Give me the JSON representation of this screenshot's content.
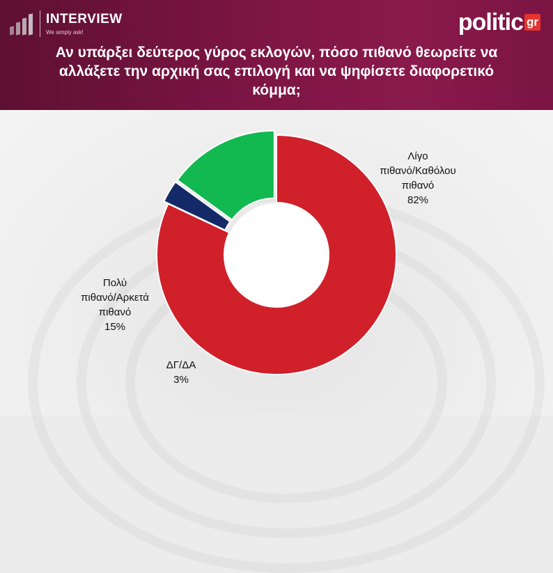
{
  "header": {
    "brand_left": "INTERVIEW",
    "brand_left_tagline": "We simply ask!",
    "brand_right": "politic",
    "brand_right_suffix": "gr",
    "title": "Αν υπάρξει δεύτερος γύρος εκλογών, πόσο πιθανό θεωρείτε να αλλάξετε την αρχική σας επιλογή και να ψηφίσετε διαφορετικό κόμμα;"
  },
  "chart_data": {
    "type": "pie",
    "donut": true,
    "title": "Αν υπάρξει δεύτερος γύρος εκλογών, πόσο πιθανό θεωρείτε να αλλάξετε την αρχική σας επιλογή και να ψηφίσετε διαφορετικό κόμμα;",
    "slices": [
      {
        "label": "Λίγο πιθανό/Καθόλου πιθανό",
        "label_lines": [
          "Λίγο",
          "πιθανό/Καθόλου",
          "πιθανό"
        ],
        "value": 82,
        "value_label": "82%",
        "color": "#d0202a",
        "exploded": false
      },
      {
        "label": "ΔΓ/ΔΑ",
        "label_lines": [
          "ΔΓ/ΔΑ"
        ],
        "value": 3,
        "value_label": "3%",
        "color": "#142a68",
        "exploded": true
      },
      {
        "label": "Πολύ πιθανό/Αρκετά πιθανό",
        "label_lines": [
          "Πολύ",
          "πιθανό/Αρκετά",
          "πιθανό"
        ],
        "value": 15,
        "value_label": "15%",
        "color": "#12b850",
        "exploded": true
      }
    ],
    "start_angle_deg": 270,
    "direction": "clockwise",
    "legend": "none"
  }
}
